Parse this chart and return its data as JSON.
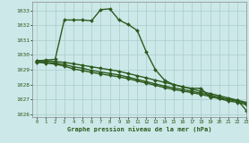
{
  "background_color": "#cce8e8",
  "grid_color": "#aacccc",
  "line_color": "#2d5a1e",
  "xlim": [
    -0.5,
    23
  ],
  "ylim": [
    1025.8,
    1033.6
  ],
  "yticks": [
    1026,
    1027,
    1028,
    1029,
    1030,
    1031,
    1032,
    1033
  ],
  "xticks": [
    0,
    1,
    2,
    3,
    4,
    5,
    6,
    7,
    8,
    9,
    10,
    11,
    12,
    13,
    14,
    15,
    16,
    17,
    18,
    19,
    20,
    21,
    22,
    23
  ],
  "xlabel": "Graphe pression niveau de la mer (hPa)",
  "series": [
    {
      "x": [
        0,
        1,
        2,
        3,
        4,
        5,
        6,
        7,
        8,
        9,
        10,
        11,
        12,
        13,
        14,
        15,
        16,
        17,
        18,
        19,
        20,
        21,
        22,
        23
      ],
      "y": [
        1029.6,
        1029.65,
        1029.7,
        1032.35,
        1032.35,
        1032.35,
        1032.3,
        1033.05,
        1033.1,
        1032.35,
        1032.05,
        1031.65,
        1030.2,
        1029.0,
        1028.3,
        1028.0,
        1027.85,
        1027.75,
        1027.75,
        1027.15,
        1027.1,
        1027.0,
        1026.95,
        1026.25
      ],
      "marker": "D",
      "markersize": 2.0,
      "linewidth": 1.0
    },
    {
      "x": [
        0,
        1,
        2,
        3,
        4,
        5,
        6,
        7,
        8,
        9,
        10,
        11,
        12,
        13,
        14,
        15,
        16,
        17,
        18,
        19,
        20,
        21,
        22,
        23
      ],
      "y": [
        1029.6,
        1029.6,
        1029.55,
        1029.5,
        1029.4,
        1029.3,
        1029.2,
        1029.1,
        1029.0,
        1028.9,
        1028.75,
        1028.6,
        1028.45,
        1028.3,
        1028.15,
        1028.0,
        1027.85,
        1027.7,
        1027.55,
        1027.4,
        1027.25,
        1027.1,
        1026.95,
        1026.8
      ],
      "marker": "D",
      "markersize": 2.0,
      "linewidth": 1.0
    },
    {
      "x": [
        0,
        1,
        2,
        3,
        4,
        5,
        6,
        7,
        8,
        9,
        10,
        11,
        12,
        13,
        14,
        15,
        16,
        17,
        18,
        19,
        20,
        21,
        22,
        23
      ],
      "y": [
        1029.55,
        1029.5,
        1029.45,
        1029.35,
        1029.2,
        1029.1,
        1028.95,
        1028.85,
        1028.75,
        1028.65,
        1028.5,
        1028.35,
        1028.2,
        1028.05,
        1027.9,
        1027.78,
        1027.67,
        1027.55,
        1027.43,
        1027.3,
        1027.15,
        1027.0,
        1026.88,
        1026.73
      ],
      "marker": "D",
      "markersize": 2.0,
      "linewidth": 1.0
    },
    {
      "x": [
        0,
        1,
        2,
        3,
        4,
        5,
        6,
        7,
        8,
        9,
        10,
        11,
        12,
        13,
        14,
        15,
        16,
        17,
        18,
        19,
        20,
        21,
        22,
        23
      ],
      "y": [
        1029.5,
        1029.45,
        1029.38,
        1029.25,
        1029.05,
        1028.95,
        1028.82,
        1028.72,
        1028.62,
        1028.52,
        1028.4,
        1028.25,
        1028.1,
        1027.95,
        1027.8,
        1027.67,
        1027.57,
        1027.46,
        1027.34,
        1027.2,
        1027.05,
        1026.9,
        1026.8,
        1026.65
      ],
      "marker": "D",
      "markersize": 2.0,
      "linewidth": 1.0
    }
  ]
}
